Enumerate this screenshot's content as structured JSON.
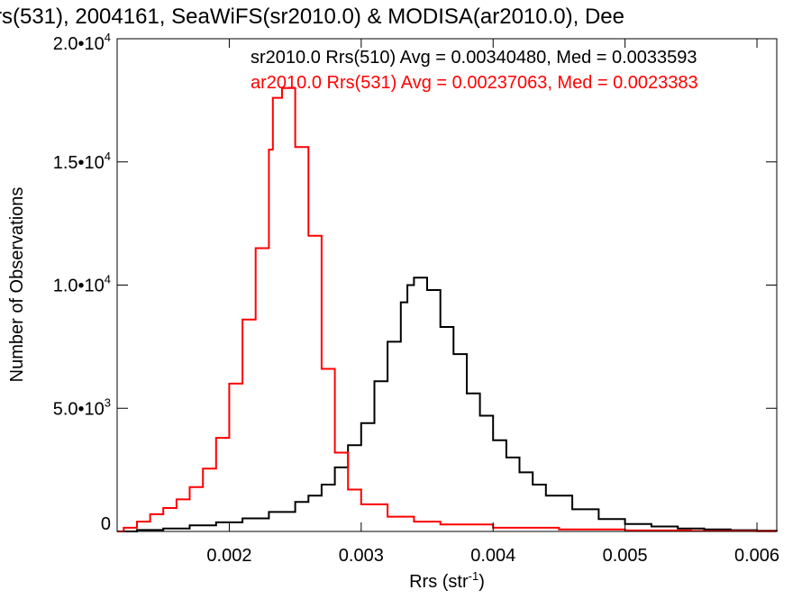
{
  "chart_data": {
    "type": "line",
    "title": "rs(531), 2004161, SeaWiFS(sr2010.0) & MODISA(ar2010.0), Dee",
    "xlabel": "Rrs (str",
    "xlabel_sup": "-1",
    "xlabel_tail": ")",
    "ylabel": "Number of Observations",
    "xlim": [
      0.00115,
      0.00615
    ],
    "ylim": [
      0,
      20000
    ],
    "x_ticks": [
      {
        "value": 0.002,
        "label": "0.002"
      },
      {
        "value": 0.003,
        "label": "0.003"
      },
      {
        "value": 0.004,
        "label": "0.004"
      },
      {
        "value": 0.005,
        "label": "0.005"
      },
      {
        "value": 0.006,
        "label": "0.006"
      }
    ],
    "y_ticks": [
      {
        "value": 0,
        "mantissa": "0",
        "exponent": ""
      },
      {
        "value": 5000,
        "mantissa": "5.0•10",
        "exponent": "3"
      },
      {
        "value": 10000,
        "mantissa": "1.0•10",
        "exponent": "4"
      },
      {
        "value": 15000,
        "mantissa": "1.5•10",
        "exponent": "4"
      },
      {
        "value": 20000,
        "mantissa": "2.0•10",
        "exponent": "4"
      }
    ],
    "grid": false,
    "legend": "top-right",
    "annotations": [
      {
        "text": "sr2010.0 Rrs(510) Avg = 0.00340480, Med = 0.0033593",
        "color": "#000000"
      },
      {
        "text": "ar2010.0 Rrs(531) Avg = 0.00237063, Med = 0.0023383",
        "color": "#ff0000"
      }
    ],
    "series": [
      {
        "color": "#000000",
        "style": "step",
        "points": [
          [
            0.00115,
            0
          ],
          [
            0.0013,
            60
          ],
          [
            0.0015,
            120
          ],
          [
            0.0017,
            250
          ],
          [
            0.0019,
            370
          ],
          [
            0.0021,
            530
          ],
          [
            0.0023,
            790
          ],
          [
            0.0025,
            1200
          ],
          [
            0.0026,
            1450
          ],
          [
            0.0027,
            1900
          ],
          [
            0.0028,
            2600
          ],
          [
            0.0029,
            3500
          ],
          [
            0.003,
            4400
          ],
          [
            0.0031,
            6100
          ],
          [
            0.0032,
            7700
          ],
          [
            0.0033,
            9300
          ],
          [
            0.00335,
            10000
          ],
          [
            0.0034,
            10300
          ],
          [
            0.0035,
            9800
          ],
          [
            0.0036,
            8300
          ],
          [
            0.0037,
            7200
          ],
          [
            0.0038,
            5600
          ],
          [
            0.0039,
            4700
          ],
          [
            0.004,
            3700
          ],
          [
            0.0041,
            3000
          ],
          [
            0.0042,
            2400
          ],
          [
            0.0043,
            1900
          ],
          [
            0.0044,
            1450
          ],
          [
            0.0046,
            900
          ],
          [
            0.0048,
            500
          ],
          [
            0.005,
            300
          ],
          [
            0.0052,
            200
          ],
          [
            0.0054,
            120
          ],
          [
            0.0056,
            80
          ],
          [
            0.0058,
            50
          ],
          [
            0.006,
            30
          ],
          [
            0.00615,
            20
          ]
        ]
      },
      {
        "color": "#ff0000",
        "style": "step",
        "points": [
          [
            0.00115,
            0
          ],
          [
            0.0012,
            150
          ],
          [
            0.0013,
            400
          ],
          [
            0.0014,
            700
          ],
          [
            0.0015,
            950
          ],
          [
            0.0016,
            1300
          ],
          [
            0.0017,
            1800
          ],
          [
            0.0018,
            2550
          ],
          [
            0.0019,
            3800
          ],
          [
            0.002,
            6000
          ],
          [
            0.0021,
            8600
          ],
          [
            0.0022,
            11500
          ],
          [
            0.0023,
            15500
          ],
          [
            0.00233,
            17600
          ],
          [
            0.0024,
            18000
          ],
          [
            0.0025,
            15600
          ],
          [
            0.0026,
            12000
          ],
          [
            0.0027,
            6600
          ],
          [
            0.0028,
            3200
          ],
          [
            0.0029,
            1700
          ],
          [
            0.003,
            1100
          ],
          [
            0.0032,
            600
          ],
          [
            0.0034,
            400
          ],
          [
            0.0036,
            280
          ],
          [
            0.004,
            150
          ],
          [
            0.0045,
            80
          ],
          [
            0.005,
            40
          ],
          [
            0.0055,
            20
          ],
          [
            0.006,
            10
          ],
          [
            0.00615,
            5
          ]
        ]
      }
    ]
  }
}
